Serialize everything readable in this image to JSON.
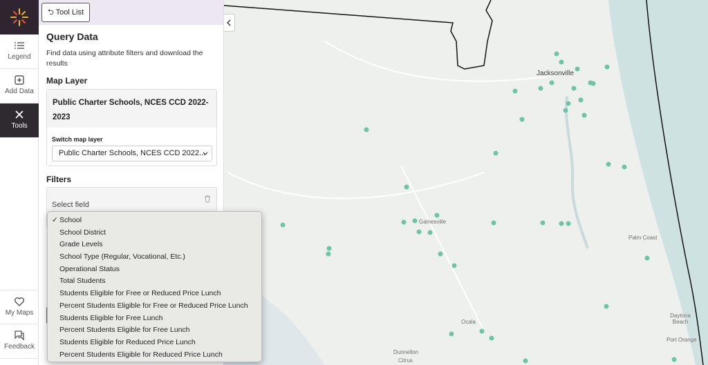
{
  "nav": {
    "legend": "Legend",
    "add_data": "Add Data",
    "tools": "Tools",
    "my_maps": "My Maps",
    "feedback": "Feedback"
  },
  "panel": {
    "back_button": "Tool List",
    "title": "Query Data",
    "description": "Find data using attribute filters and download the results",
    "map_layer_heading": "Map Layer",
    "layer_card": {
      "title": "Public Charter Schools, NCES CCD 2022-2023",
      "switch_label": "Switch map layer",
      "select_value": "Public Charter Schools, NCES CCD 2022..."
    },
    "filters_heading": "Filters",
    "field_placeholder": "Select field"
  },
  "dropdown": {
    "selected_mark": "✓",
    "selected_index": 0,
    "options": [
      "School",
      "School District",
      "Grade Levels",
      "School Type (Regular, Vocational, Etc.)",
      "Operational Status",
      "Total Students",
      "Students Eligible for Free or Reduced Price Lunch",
      "Percent Students Eligible for Free or Reduced Price Lunch",
      "Students Eligible for Free Lunch",
      "Percent Students Eligible for Free Lunch",
      "Students Eligible for Reduced Price Lunch",
      "Percent Students Eligible for Reduced Price Lunch"
    ]
  },
  "map": {
    "labels": [
      "Jacksonville",
      "Gainesville",
      "Palm Coast",
      "Ocala",
      "Daytona Beach",
      "Port Orange",
      "Dunnellon",
      "Citrus"
    ]
  }
}
